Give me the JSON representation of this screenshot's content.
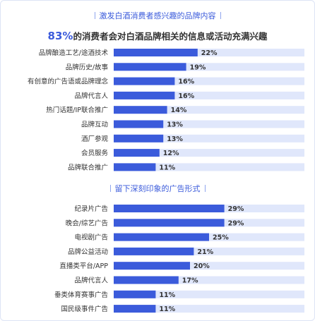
{
  "section1": {
    "title": "激发白酒消费者感兴趣的品牌内容",
    "highlight": "83%",
    "subtitle": "的消费者会对白酒品牌相关的信息或活动充满兴趣"
  },
  "section2": {
    "title": "留下深刻印象的广告形式"
  },
  "colors": {
    "bar": "#3b5bdb",
    "track": "#e0e7fb",
    "accent": "#3b5bdb"
  },
  "chart_data": [
    {
      "type": "bar",
      "orientation": "horizontal",
      "title": "激发白酒消费者感兴趣的品牌内容",
      "categories": [
        "品牌酿造工艺/途酒技术",
        "品牌历史/故事",
        "有创意的广告语或品牌理念",
        "品牌代言人",
        "热门话题/IP联合推广",
        "品牌互动",
        "酒厂参观",
        "会员服务",
        "品牌联合推广"
      ],
      "values": [
        22,
        19,
        16,
        16,
        14,
        13,
        13,
        12,
        11
      ],
      "labels": [
        "22%",
        "19%",
        "16%",
        "16%",
        "14%",
        "13%",
        "13%",
        "12%",
        "11%"
      ],
      "unit": "%",
      "xlim": [
        0,
        50
      ],
      "grid": false,
      "legend": "none"
    },
    {
      "type": "bar",
      "orientation": "horizontal",
      "title": "留下深刻印象的广告形式",
      "categories": [
        "纪录片广告",
        "晚会/综艺广告",
        "电视剧广告",
        "品牌公益活动",
        "直播类平台/APP",
        "品牌代言人",
        "垂类体育赛事广告",
        "国民级事件广告"
      ],
      "values": [
        29,
        29,
        25,
        21,
        20,
        17,
        11,
        11
      ],
      "labels": [
        "29%",
        "29%",
        "25%",
        "21%",
        "20%",
        "17%",
        "11%",
        "11%"
      ],
      "unit": "%",
      "xlim": [
        0,
        50
      ],
      "grid": false,
      "legend": "none"
    }
  ]
}
